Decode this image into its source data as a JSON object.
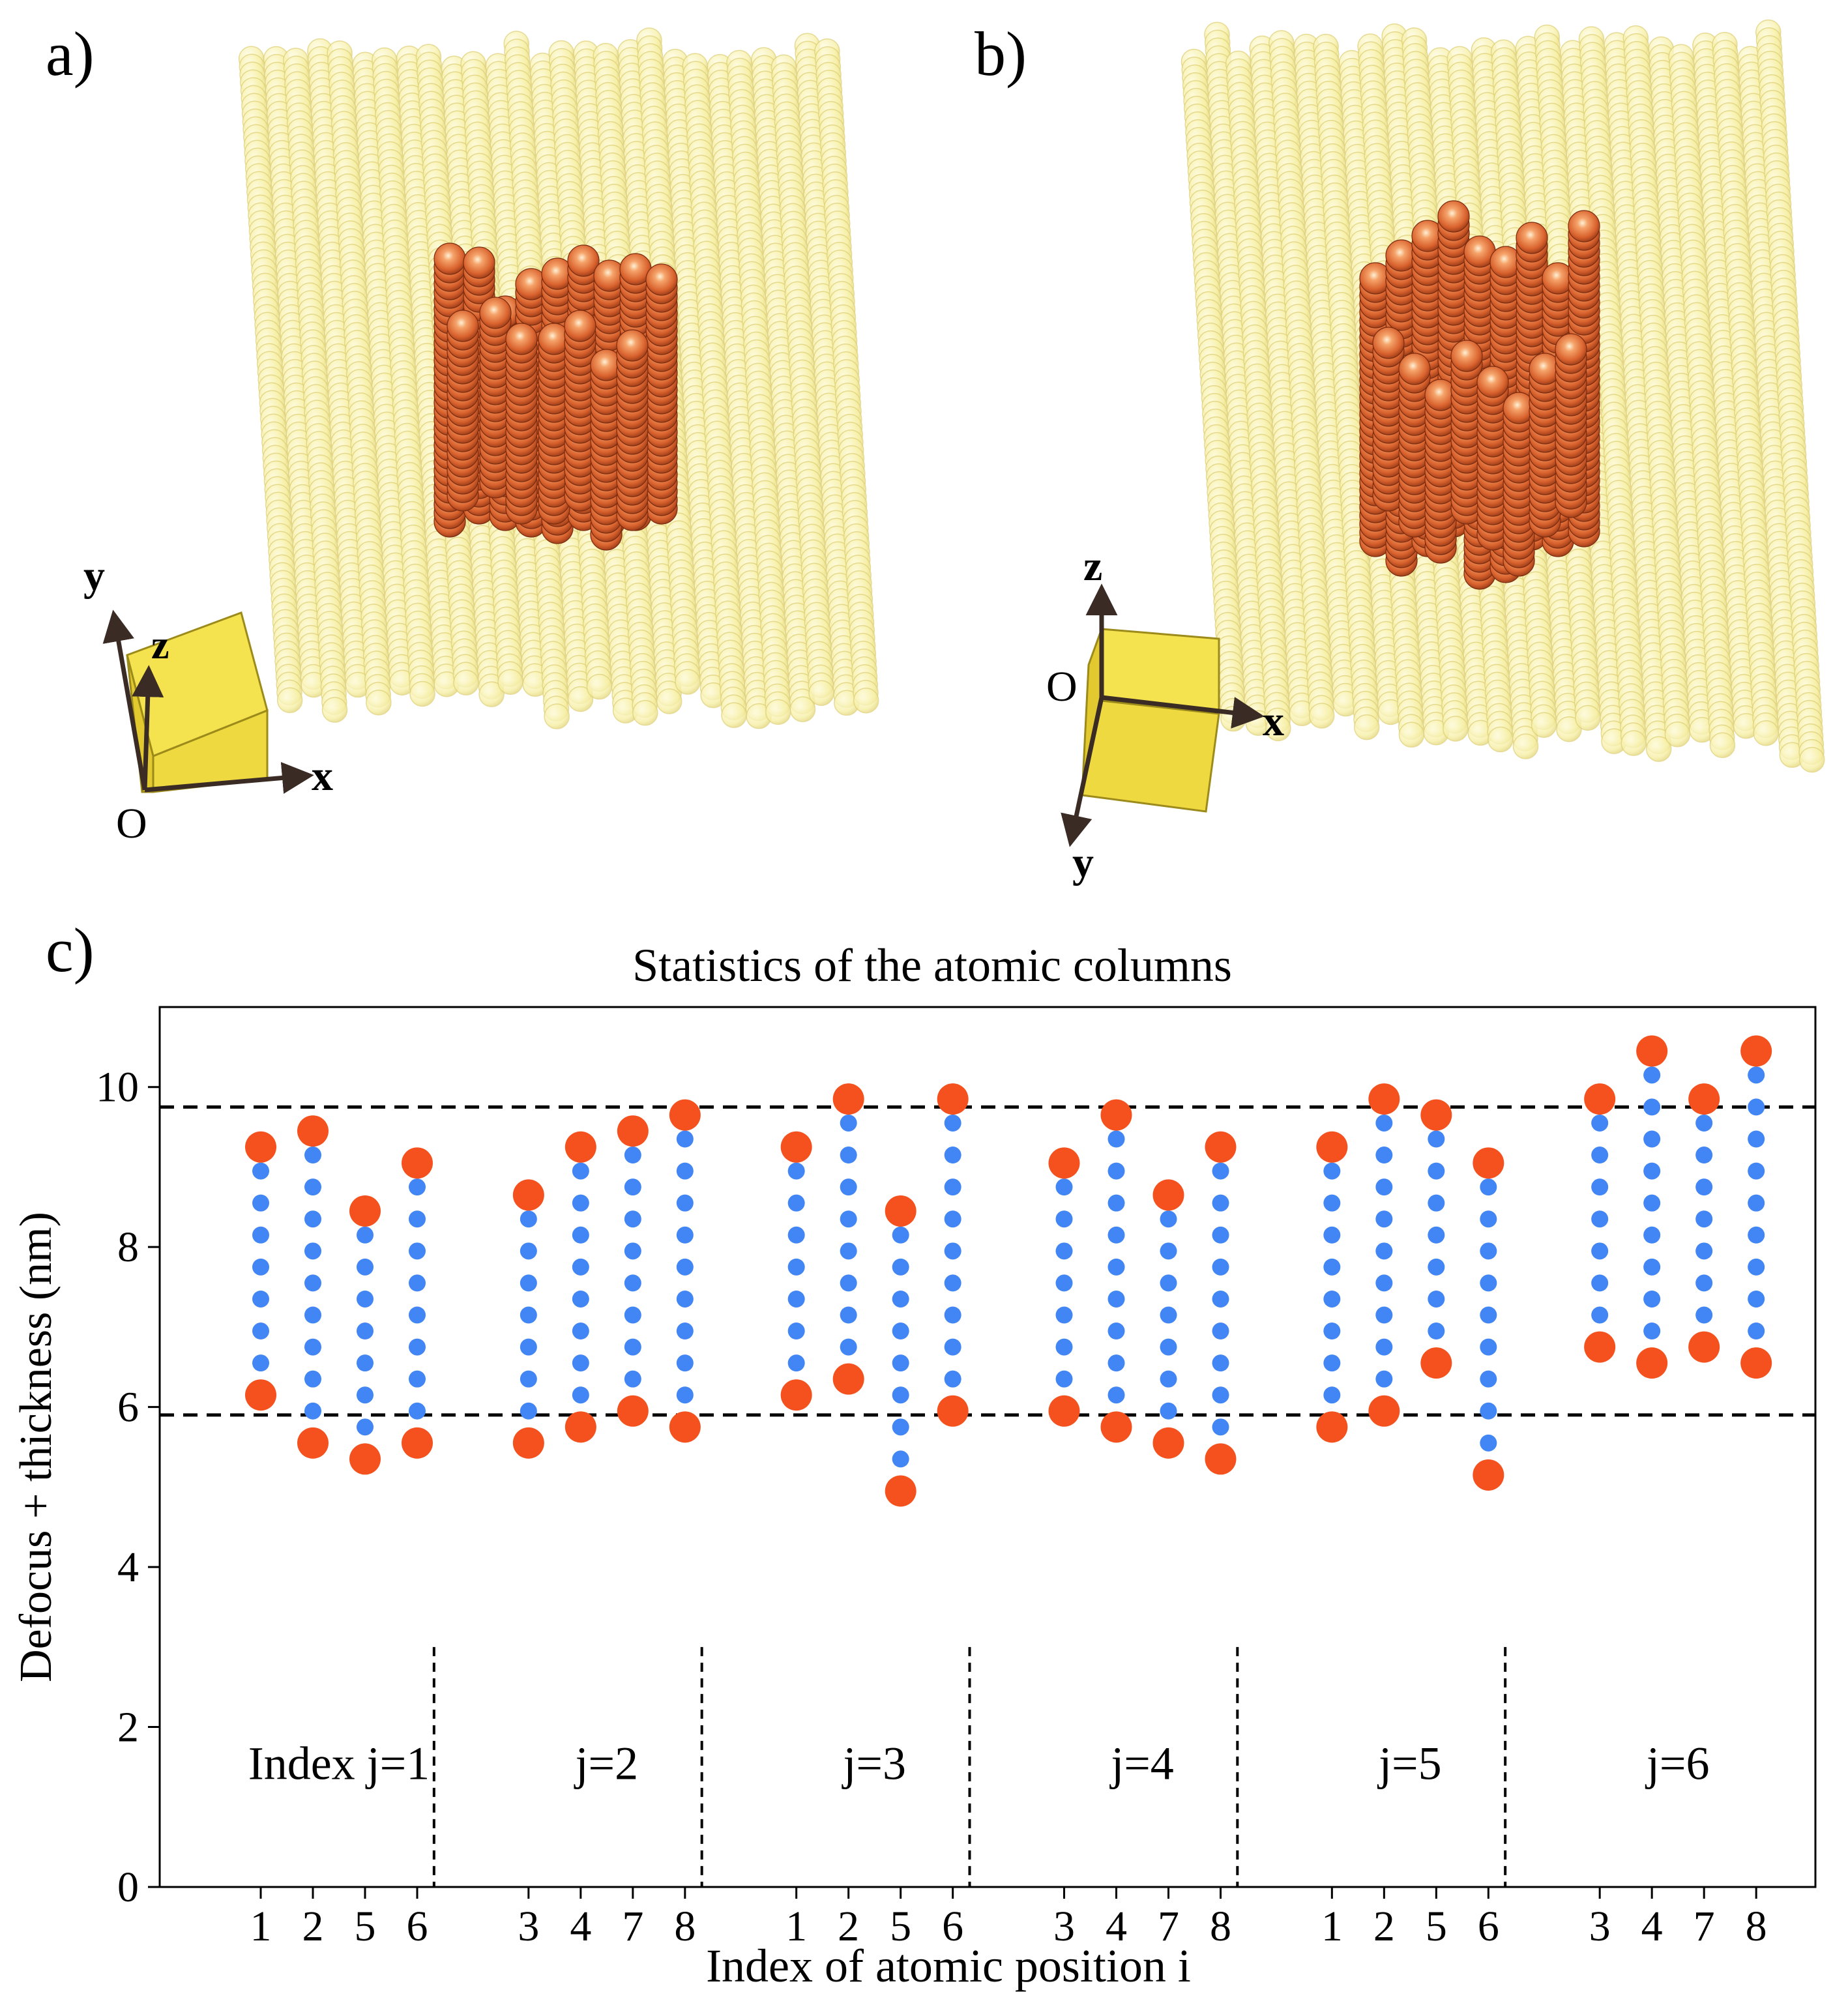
{
  "panels": {
    "a": {
      "label": "a)",
      "axes": {
        "x": "x",
        "y": "y",
        "z": "z",
        "origin": "O"
      }
    },
    "b": {
      "label": "b)",
      "axes": {
        "x": "x",
        "y": "y",
        "z": "z",
        "origin": "O"
      }
    },
    "c": {
      "label": "c)"
    }
  },
  "colors": {
    "host_atom": "#f7f0a6",
    "host_atom_edge": "#e6da7c",
    "nano_atom": "#d9622e",
    "nano_atom_highlight": "#fbe3c4",
    "cube_face": "#f4e34f",
    "cube_edge": "#9c8a1a",
    "endpoint": "#f4511e",
    "interior": "#4285f4",
    "axis_arrow": "#3a2c25"
  },
  "chart_data": {
    "type": "scatter",
    "title": "Statistics of the atomic columns",
    "xlabel": "Index of atomic position i",
    "ylabel": "Defocus + thickness (nm)",
    "ylim": [
      0,
      11
    ],
    "yticks": [
      0,
      2,
      4,
      6,
      8,
      10
    ],
    "grid": false,
    "reference_lines": [
      5.9,
      9.75
    ],
    "groups": [
      {
        "label": "Index j=1",
        "columns": [
          {
            "i": "1",
            "bottom": 6.15,
            "top": 9.25
          },
          {
            "i": "2",
            "bottom": 5.55,
            "top": 9.45
          },
          {
            "i": "5",
            "bottom": 5.35,
            "top": 8.45
          },
          {
            "i": "6",
            "bottom": 5.55,
            "top": 9.05
          }
        ]
      },
      {
        "label": "j=2",
        "columns": [
          {
            "i": "3",
            "bottom": 5.55,
            "top": 8.65
          },
          {
            "i": "4",
            "bottom": 5.75,
            "top": 9.25
          },
          {
            "i": "7",
            "bottom": 5.95,
            "top": 9.45
          },
          {
            "i": "8",
            "bottom": 5.75,
            "top": 9.65
          }
        ]
      },
      {
        "label": "j=3",
        "columns": [
          {
            "i": "1",
            "bottom": 6.15,
            "top": 9.25
          },
          {
            "i": "2",
            "bottom": 6.35,
            "top": 9.85
          },
          {
            "i": "5",
            "bottom": 4.95,
            "top": 8.45
          },
          {
            "i": "6",
            "bottom": 5.95,
            "top": 9.85
          }
        ]
      },
      {
        "label": "j=4",
        "columns": [
          {
            "i": "3",
            "bottom": 5.95,
            "top": 9.05
          },
          {
            "i": "4",
            "bottom": 5.75,
            "top": 9.65
          },
          {
            "i": "7",
            "bottom": 5.55,
            "top": 8.65
          },
          {
            "i": "8",
            "bottom": 5.35,
            "top": 9.25
          }
        ]
      },
      {
        "label": "j=5",
        "columns": [
          {
            "i": "1",
            "bottom": 5.75,
            "top": 9.25
          },
          {
            "i": "2",
            "bottom": 5.95,
            "top": 9.85
          },
          {
            "i": "5",
            "bottom": 6.55,
            "top": 9.65
          },
          {
            "i": "6",
            "bottom": 5.15,
            "top": 9.05
          }
        ]
      },
      {
        "label": "j=6",
        "columns": [
          {
            "i": "3",
            "bottom": 6.75,
            "top": 9.85
          },
          {
            "i": "4",
            "bottom": 6.55,
            "top": 10.45
          },
          {
            "i": "7",
            "bottom": 6.75,
            "top": 9.85
          },
          {
            "i": "8",
            "bottom": 6.55,
            "top": 10.45
          }
        ]
      }
    ]
  }
}
